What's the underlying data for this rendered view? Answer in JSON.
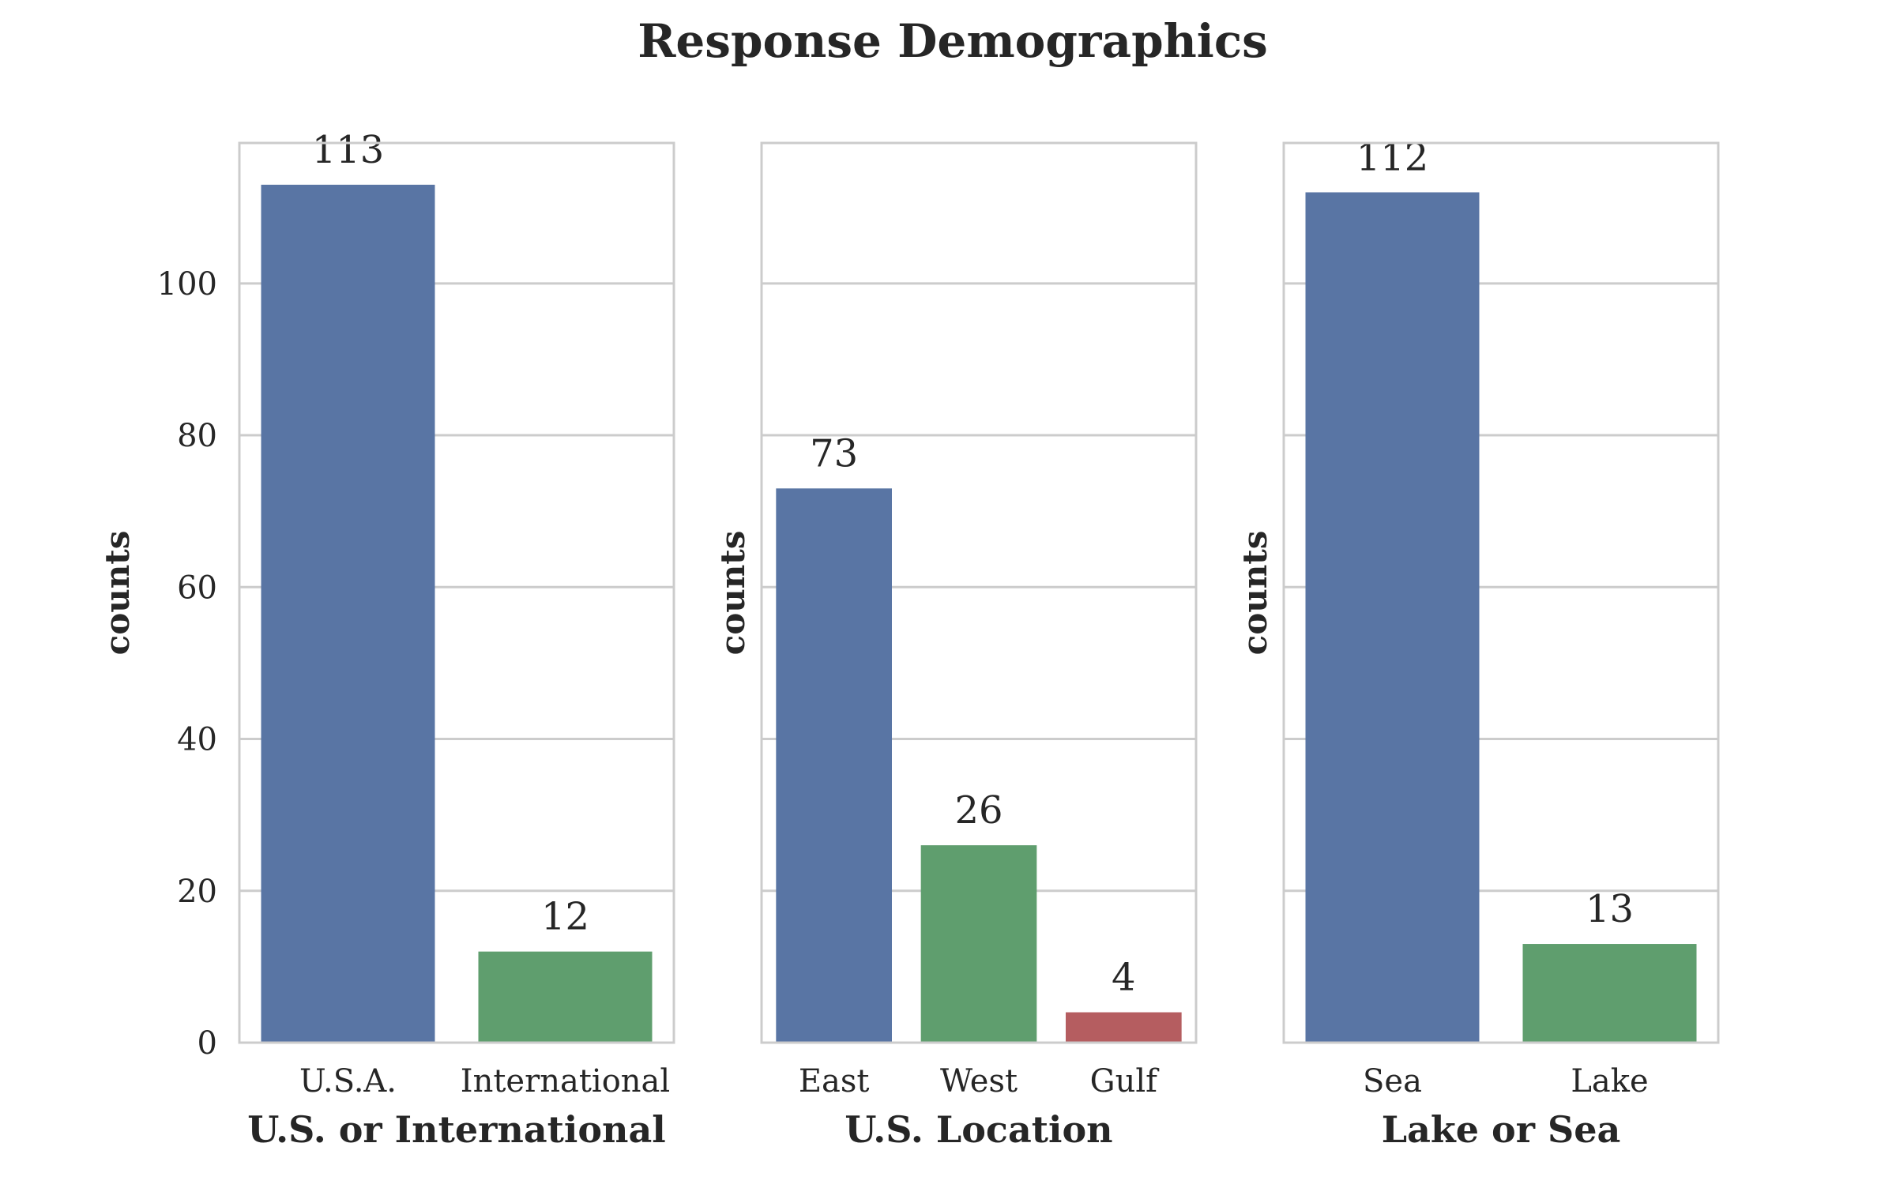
{
  "chart_data": {
    "type": "bar",
    "title": "Response Demographics",
    "colors": [
      "#5975a4",
      "#5f9e6e",
      "#b55d60"
    ],
    "grid": true,
    "shared_y": true,
    "ylim": [
      0,
      118.5
    ],
    "yticks": [
      0,
      20,
      40,
      60,
      80,
      100
    ],
    "subplots": [
      {
        "xlabel": "U.S. or International",
        "ylabel": "counts",
        "categories": [
          "U.S.A.",
          "International"
        ],
        "values": [
          113,
          12
        ],
        "value_labels": [
          "113",
          "12"
        ]
      },
      {
        "xlabel": "U.S. Location",
        "ylabel": "counts",
        "categories": [
          "East",
          "West",
          "Gulf"
        ],
        "values": [
          73,
          26,
          4
        ],
        "value_labels": [
          "73",
          "26",
          "4"
        ]
      },
      {
        "xlabel": "Lake or Sea",
        "ylabel": "counts",
        "categories": [
          "Sea",
          "Lake"
        ],
        "values": [
          112,
          13
        ],
        "value_labels": [
          "112",
          "13"
        ]
      }
    ]
  }
}
